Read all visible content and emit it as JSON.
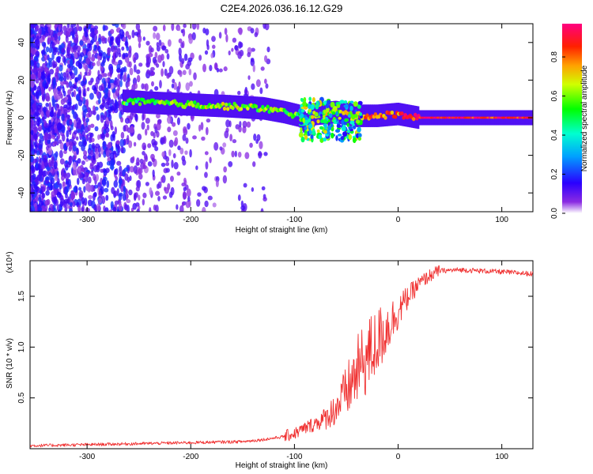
{
  "title": "C2E4.2026.036.16.12.G29",
  "chart_data": [
    {
      "type": "heatmap",
      "xlabel": "Height of straight line (km)",
      "ylabel": "Frequency (Hz)",
      "xlim": [
        -355,
        130
      ],
      "ylim": [
        -50,
        50
      ],
      "xticks": [
        -300,
        -200,
        -100,
        0,
        100
      ],
      "yticks": [
        -40,
        -20,
        0,
        20,
        40
      ],
      "xtick_labels": [
        "-300",
        "-200",
        "-100",
        "0",
        "100"
      ],
      "ytick_labels": [
        "-40",
        "-20",
        "0",
        "20",
        "40"
      ],
      "colorbar": {
        "label": "Normalized spectral amplitude",
        "range": [
          0,
          0.97
        ],
        "ticks": [
          0.0,
          0.2,
          0.4,
          0.6,
          0.8
        ],
        "tick_labels": [
          "0.0",
          "0.2",
          "0.4",
          "0.6",
          "0.8"
        ],
        "colormap": [
          "#ffffff",
          "#6a00ff",
          "#0000ff",
          "#00e5ff",
          "#00ff00",
          "#ffff00",
          "#ff8000",
          "#ff0000",
          "#ff0080"
        ]
      },
      "ridge": [
        {
          "x": -265,
          "y": 9,
          "a": 0.55
        },
        {
          "x": -240,
          "y": 8,
          "a": 0.6
        },
        {
          "x": -200,
          "y": 7,
          "a": 0.65
        },
        {
          "x": -160,
          "y": 6,
          "a": 0.62
        },
        {
          "x": -130,
          "y": 5,
          "a": 0.6
        },
        {
          "x": -110,
          "y": 3,
          "a": 0.62
        },
        {
          "x": -95,
          "y": 1,
          "a": 0.55
        },
        {
          "x": -88,
          "y": -4,
          "a": 0.5
        },
        {
          "x": -80,
          "y": 2,
          "a": 0.7
        },
        {
          "x": -60,
          "y": 3,
          "a": 0.65
        },
        {
          "x": -40,
          "y": 1,
          "a": 0.75
        },
        {
          "x": -20,
          "y": 1,
          "a": 0.85
        },
        {
          "x": 0,
          "y": 2,
          "a": 0.8
        },
        {
          "x": 20,
          "y": 0,
          "a": 0.95
        },
        {
          "x": 130,
          "y": 0,
          "a": 0.9
        }
      ]
    },
    {
      "type": "line",
      "xlabel": "Height of straight line (km)",
      "ylabel": "SNR (10 * v/v)",
      "scale_label": "(x10⁴)",
      "xlim": [
        -355,
        130
      ],
      "ylim": [
        0,
        1.85
      ],
      "xticks": [
        -300,
        -200,
        -100,
        0,
        100
      ],
      "yticks": [
        0.5,
        1.0,
        1.5
      ],
      "xtick_labels": [
        "-300",
        "-200",
        "-100",
        "0",
        "100"
      ],
      "ytick_labels": [
        "0.5",
        "1.0",
        "1.5"
      ],
      "color": "#f03030",
      "x": [
        -355,
        -300,
        -250,
        -200,
        -150,
        -130,
        -110,
        -100,
        -90,
        -80,
        -70,
        -60,
        -50,
        -40,
        -30,
        -20,
        -10,
        0,
        10,
        20,
        30,
        40,
        60,
        80,
        100,
        130
      ],
      "y": [
        0.03,
        0.04,
        0.05,
        0.06,
        0.07,
        0.09,
        0.12,
        0.15,
        0.2,
        0.25,
        0.3,
        0.4,
        0.55,
        0.75,
        0.9,
        1.05,
        1.2,
        1.35,
        1.5,
        1.62,
        1.7,
        1.75,
        1.76,
        1.75,
        1.74,
        1.72
      ]
    }
  ]
}
